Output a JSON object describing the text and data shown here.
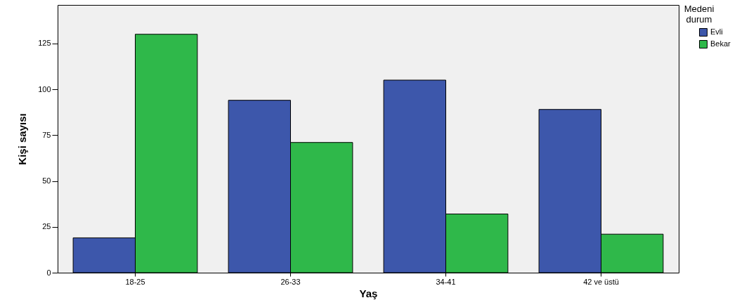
{
  "chart_data": {
    "type": "bar",
    "xlabel": "Yaş",
    "ylabel": "Kişi sayısı",
    "legend_title": "Medeni durum",
    "categories": [
      "18-25",
      "26-33",
      "34-41",
      "42 ve üstü"
    ],
    "series": [
      {
        "name": "Evli",
        "color": "#3d57ab",
        "values": [
          19,
          94,
          105,
          89
        ]
      },
      {
        "name": "Bekar",
        "color": "#2fb84a",
        "values": [
          130,
          71,
          32,
          21
        ]
      }
    ],
    "ylim": [
      0,
      146
    ],
    "yticks": [
      0,
      25,
      50,
      75,
      100,
      125
    ],
    "grid": false,
    "legend": "right"
  }
}
